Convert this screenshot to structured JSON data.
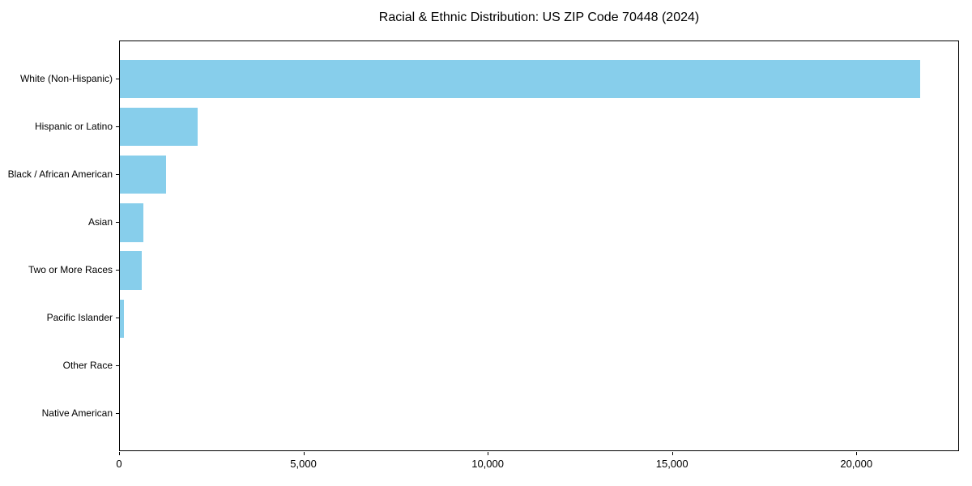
{
  "chart_data": {
    "type": "bar",
    "orientation": "horizontal",
    "title": "Racial & Ethnic Distribution: US ZIP Code 70448 (2024)",
    "categories": [
      "White (Non-Hispanic)",
      "Hispanic or Latino",
      "Black / African American",
      "Asian",
      "Two or More Races",
      "Pacific Islander",
      "Other Race",
      "Native American"
    ],
    "values": [
      21700,
      2100,
      1250,
      630,
      590,
      120,
      0,
      0
    ],
    "xlabel": "",
    "ylabel": "",
    "xlim": [
      0,
      22785
    ],
    "x_ticks": [
      0,
      5000,
      10000,
      15000,
      20000
    ],
    "x_tick_labels": [
      "0",
      "5,000",
      "10,000",
      "15,000",
      "20,000"
    ],
    "bar_color": "#87CEEB",
    "spine_color": "#000000",
    "background_color": "#ffffff",
    "grid": false,
    "legend": null
  }
}
